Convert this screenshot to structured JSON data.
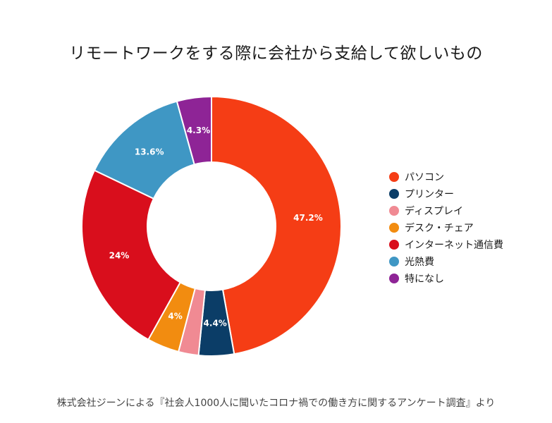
{
  "chart_data": {
    "type": "pie",
    "variant": "donut",
    "title": "リモートワークをする際に会社から支給して欲しいもの",
    "categories": [
      "パソコン",
      "プリンター",
      "ディスプレイ",
      "デスク・チェア",
      "インターネット通信費",
      "光熱費",
      "特になし"
    ],
    "values": [
      47.2,
      4.4,
      2.5,
      4,
      24,
      13.6,
      4.3
    ],
    "value_labels": [
      "47.2%",
      "4.4%",
      "",
      "4%",
      "24%",
      "13.6%",
      "4.3%"
    ],
    "colors": [
      "#F53D15",
      "#0B3D67",
      "#F08A93",
      "#F28C10",
      "#D90E1C",
      "#3F97C4",
      "#8E2496"
    ],
    "legend_position": "right",
    "source": "株式会社ジーンによる『社会人1000人に聞いたコロナ禍での働き方に関するアンケート調査』より"
  }
}
